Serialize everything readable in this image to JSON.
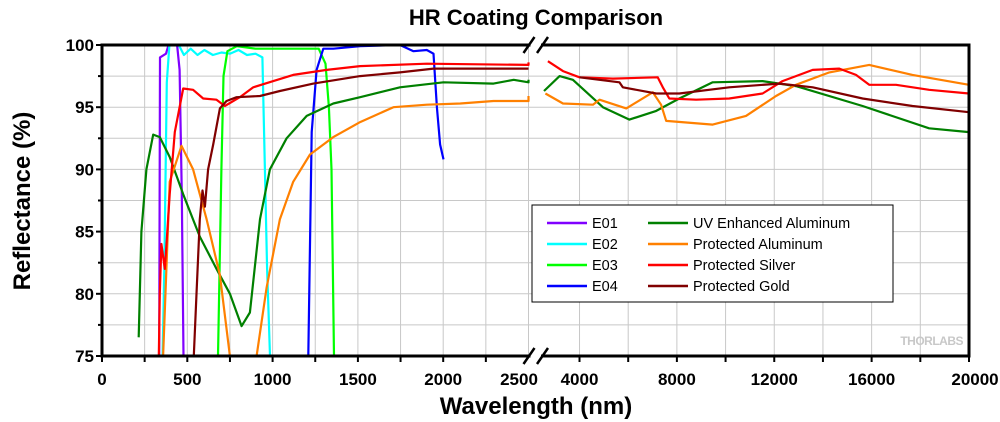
{
  "chart_data": {
    "type": "line",
    "title": "HR Coating Comparison",
    "xlabel": "Wavelength (nm)",
    "ylabel": "Reflectance (%)",
    "ylim": [
      75,
      100
    ],
    "xlim_segments": [
      [
        0,
        2500
      ],
      [
        2500,
        20000
      ]
    ],
    "x_axis_break": true,
    "grid": true,
    "legend_position": "center-right",
    "x_tick_labels": [
      "0",
      "500",
      "1000",
      "1500",
      "2000",
      "2500",
      "4000",
      "8000",
      "12000",
      "16000",
      "20000"
    ],
    "y_tick_labels": [
      "75",
      "80",
      "85",
      "90",
      "95",
      "100"
    ],
    "logo": "THORLABS",
    "series": [
      {
        "name": "E01",
        "color": "#8000ff",
        "points": [
          [
            335,
            75
          ],
          [
            340,
            99
          ],
          [
            375,
            99.3
          ],
          [
            390,
            100
          ],
          [
            440,
            100
          ],
          [
            455,
            98
          ],
          [
            468,
            88
          ],
          [
            478,
            75
          ]
        ]
      },
      {
        "name": "E02",
        "color": "#00ffff",
        "points": [
          [
            355,
            75
          ],
          [
            365,
            82
          ],
          [
            380,
            97
          ],
          [
            395,
            100
          ],
          [
            450,
            100
          ],
          [
            480,
            99.2
          ],
          [
            520,
            99.7
          ],
          [
            560,
            99.2
          ],
          [
            600,
            99.6
          ],
          [
            650,
            99.2
          ],
          [
            700,
            99.4
          ],
          [
            750,
            99.3
          ],
          [
            800,
            99.6
          ],
          [
            850,
            99.2
          ],
          [
            900,
            99.3
          ],
          [
            940,
            99
          ],
          [
            955,
            90
          ],
          [
            968,
            82
          ],
          [
            985,
            75
          ]
        ]
      },
      {
        "name": "E03",
        "color": "#00ff00",
        "points": [
          [
            680,
            75
          ],
          [
            700,
            90
          ],
          [
            712,
            97.5
          ],
          [
            735,
            99.5
          ],
          [
            790,
            99.9
          ],
          [
            900,
            99.7
          ],
          [
            1100,
            99.7
          ],
          [
            1270,
            99.7
          ],
          [
            1310,
            98.5
          ],
          [
            1330,
            95
          ],
          [
            1345,
            90
          ],
          [
            1360,
            75
          ]
        ]
      },
      {
        "name": "E04",
        "color": "#0000ff",
        "points": [
          [
            1209,
            75
          ],
          [
            1229,
            93
          ],
          [
            1258,
            98
          ],
          [
            1297,
            99.7
          ],
          [
            1356,
            99.7
          ],
          [
            1513,
            99.9
          ],
          [
            1747,
            100
          ],
          [
            1826,
            99.5
          ],
          [
            1904,
            99.6
          ],
          [
            1943,
            99.3
          ],
          [
            1963,
            95
          ],
          [
            1982,
            92
          ],
          [
            2002,
            90.8
          ]
        ]
      },
      {
        "name": "UV Enhanced Aluminum",
        "color": "#008000",
        "points": [
          [
            215,
            76.5
          ],
          [
            231,
            85
          ],
          [
            260,
            90
          ],
          [
            300,
            92.8
          ],
          [
            339,
            92.6
          ],
          [
            397,
            91
          ],
          [
            476,
            88
          ],
          [
            573,
            84.6
          ],
          [
            671,
            82
          ],
          [
            750,
            80
          ],
          [
            818,
            77.4
          ],
          [
            867,
            78.5
          ],
          [
            926,
            86
          ],
          [
            984,
            90
          ],
          [
            1082,
            92.5
          ],
          [
            1200,
            94.3
          ],
          [
            1356,
            95.3
          ],
          [
            1513,
            95.8
          ],
          [
            1747,
            96.6
          ],
          [
            2002,
            97
          ],
          [
            2295,
            96.9
          ],
          [
            2413,
            97.2
          ],
          [
            2500,
            97
          ],
          [
            2500,
            97.2
          ],
          [
            2540,
            96.3
          ],
          [
            3180,
            97.5
          ],
          [
            3730,
            97.2
          ],
          [
            4960,
            95
          ],
          [
            6050,
            94
          ],
          [
            7150,
            94.7
          ],
          [
            8100,
            95.7
          ],
          [
            9470,
            97
          ],
          [
            11520,
            97.1
          ],
          [
            12890,
            96.7
          ],
          [
            15630,
            95.1
          ],
          [
            18360,
            93.3
          ],
          [
            20000,
            93
          ]
        ]
      },
      {
        "name": "Protected Aluminum",
        "color": "#ff8000",
        "points": [
          [
            358,
            75
          ],
          [
            397,
            89
          ],
          [
            466,
            91.9
          ],
          [
            534,
            90
          ],
          [
            613,
            86
          ],
          [
            691,
            81.5
          ],
          [
            750,
            75
          ],
          null,
          [
            906,
            75
          ],
          [
            965,
            80.5
          ],
          [
            1043,
            86
          ],
          [
            1121,
            89
          ],
          [
            1219,
            91.2
          ],
          [
            1356,
            92.6
          ],
          [
            1513,
            93.8
          ],
          [
            1708,
            95
          ],
          [
            1904,
            95.2
          ],
          [
            2100,
            95.3
          ],
          [
            2295,
            95.5
          ],
          [
            2500,
            95.5
          ],
          [
            2500,
            95.9
          ],
          [
            2600,
            96.1
          ],
          [
            3320,
            95.3
          ],
          [
            4550,
            95.2
          ],
          [
            4820,
            95.6
          ],
          [
            5920,
            94.9
          ],
          [
            7010,
            96.2
          ],
          [
            7350,
            95.2
          ],
          [
            7560,
            93.9
          ],
          [
            9470,
            93.6
          ],
          [
            10840,
            94.3
          ],
          [
            12070,
            95.9
          ],
          [
            12890,
            96.8
          ],
          [
            14260,
            97.8
          ],
          [
            15900,
            98.4
          ],
          [
            17680,
            97.6
          ],
          [
            20000,
            96.8
          ]
        ]
      },
      {
        "name": "Protected Silver",
        "color": "#ff0000",
        "points": [
          [
            333,
            75
          ],
          [
            339,
            80
          ],
          [
            348,
            84
          ],
          [
            368,
            82
          ],
          [
            378,
            84
          ],
          [
            397,
            88
          ],
          [
            427,
            93
          ],
          [
            476,
            96.5
          ],
          [
            534,
            96.4
          ],
          [
            593,
            95.7
          ],
          [
            671,
            95.6
          ],
          [
            720,
            95.1
          ],
          [
            808,
            95.8
          ],
          [
            887,
            96.6
          ],
          [
            1004,
            97.1
          ],
          [
            1121,
            97.6
          ],
          [
            1317,
            98
          ],
          [
            1513,
            98.3
          ],
          [
            1904,
            98.5
          ],
          [
            2500,
            98.4
          ],
          [
            2500,
            98.6
          ],
          [
            2700,
            98.7
          ],
          [
            3320,
            97.9
          ],
          [
            4000,
            97.4
          ],
          [
            5370,
            97.3
          ],
          [
            7210,
            97.4
          ],
          [
            7420,
            96.6
          ],
          [
            7690,
            95.7
          ],
          [
            8790,
            95.6
          ],
          [
            10150,
            95.7
          ],
          [
            11520,
            96.1
          ],
          [
            12340,
            97.1
          ],
          [
            13580,
            98
          ],
          [
            14670,
            98.1
          ],
          [
            15360,
            97.6
          ],
          [
            15900,
            96.8
          ],
          [
            17000,
            96.8
          ],
          [
            18360,
            96.4
          ],
          [
            20000,
            96.1
          ]
        ]
      },
      {
        "name": "Protected Gold",
        "color": "#800000",
        "points": [
          [
            538,
            75
          ],
          [
            554,
            80
          ],
          [
            573,
            86
          ],
          [
            589,
            88.3
          ],
          [
            603,
            87
          ],
          [
            622,
            90
          ],
          [
            652,
            92
          ],
          [
            691,
            94.9
          ],
          [
            730,
            95.5
          ],
          [
            789,
            95.8
          ],
          [
            926,
            95.9
          ],
          [
            1043,
            96.3
          ],
          [
            1239,
            96.9
          ],
          [
            1513,
            97.5
          ],
          [
            1747,
            97.8
          ],
          [
            1943,
            98.1
          ],
          [
            2500,
            98.1
          ],
          [
            2500,
            98.1
          ],
          [
            4000,
            97.4
          ],
          [
            5640,
            97
          ],
          [
            5780,
            96.6
          ],
          [
            7150,
            96.1
          ],
          [
            8100,
            96.1
          ],
          [
            10150,
            96.6
          ],
          [
            12210,
            96.9
          ],
          [
            13580,
            96.6
          ],
          [
            15630,
            95.7
          ],
          [
            17680,
            95.1
          ],
          [
            20000,
            94.6
          ]
        ]
      }
    ]
  }
}
